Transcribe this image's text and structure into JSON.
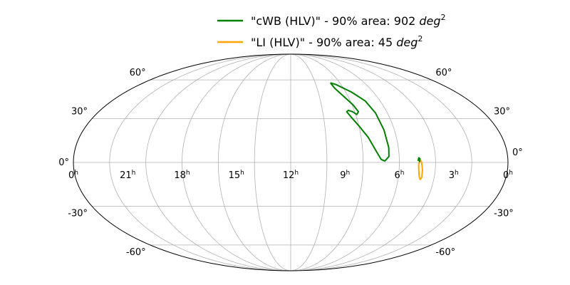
{
  "chart_data": {
    "type": "line",
    "projection": "mollweide",
    "grid": true,
    "legend_placement": "top-center",
    "ra_ticks": [
      "0",
      "21",
      "18",
      "15",
      "12",
      "9",
      "6",
      "3",
      "0"
    ],
    "ra_tick_superscript": "h",
    "dec_ticks_left": [
      "60°",
      "30°",
      "0°",
      "-30°",
      "-60°"
    ],
    "dec_ticks_right": [
      "60°",
      "30°",
      "0°",
      "-30°",
      "-60°"
    ],
    "series": [
      {
        "name": "\"cWB (HLV)\" - 90% area: 902 deg²",
        "legend_prefix": "\"cWB (HLV)\" - 90% area: 902 ",
        "legend_unit": "deg",
        "legend_exp": "2",
        "color": "#008000",
        "coords_ra_dec": [
          [
            -48.5,
            57.5
          ],
          [
            -54,
            56
          ],
          [
            -66,
            50
          ],
          [
            -75,
            43
          ],
          [
            -79,
            34
          ],
          [
            -81,
            22
          ],
          [
            -82,
            10
          ],
          [
            -81.5,
            4
          ],
          [
            -78,
            1
          ],
          [
            -75,
            2
          ],
          [
            -71,
            8
          ],
          [
            -66,
            17
          ],
          [
            -60,
            25
          ],
          [
            -56,
            30
          ],
          [
            -52.5,
            35
          ],
          [
            -54.5,
            36
          ],
          [
            -58,
            35
          ],
          [
            -61,
            33
          ],
          [
            -63.5,
            35
          ],
          [
            -61,
            40
          ],
          [
            -55,
            47
          ],
          [
            -50,
            53
          ],
          [
            -48.5,
            57.5
          ]
        ]
      },
      {
        "name": "\"LI (HLV)\" - 90% area: 45 deg²",
        "legend_prefix": "\"LI (HLV)\" - 90% area: 45 ",
        "legend_unit": "deg",
        "legend_exp": "2",
        "color": "#ffa500",
        "coords_ra_dec": [
          [
            -106,
            -1
          ],
          [
            -106.4,
            -5.5
          ],
          [
            -107.4,
            -9.5
          ],
          [
            -108.6,
            -11.5
          ],
          [
            -109.6,
            -10
          ],
          [
            -109.4,
            -5
          ],
          [
            -108.4,
            0.5
          ],
          [
            -107.2,
            1.5
          ],
          [
            -106,
            -1
          ]
        ]
      }
    ],
    "extra_paths_ra_dec": [
      {
        "series": 0,
        "coords": [
          [
            -105.5,
            1
          ],
          [
            -106.2,
            3.2
          ],
          [
            -107.2,
            2.4
          ],
          [
            -106.6,
            0.2
          ]
        ]
      }
    ]
  }
}
